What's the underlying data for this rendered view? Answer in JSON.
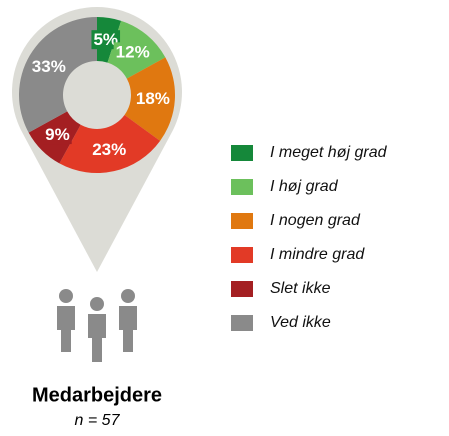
{
  "chart_data": {
    "type": "pie",
    "title": "Medarbejdere",
    "subtitle": "n = 57",
    "categories": [
      "I meget høj grad",
      "I høj grad",
      "I nogen grad",
      "I mindre grad",
      "Slet ikke",
      "Ved ikke"
    ],
    "values": [
      5,
      12,
      18,
      23,
      9,
      33
    ],
    "value_labels": [
      "5%",
      "12%",
      "18%",
      "23%",
      "9%",
      "33%"
    ],
    "colors": [
      "#15883a",
      "#6cc05c",
      "#e07810",
      "#e23a26",
      "#a41f22",
      "#8a8a8a"
    ],
    "legend": "right"
  }
}
